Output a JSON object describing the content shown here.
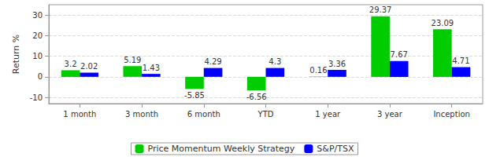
{
  "chart_data": {
    "type": "bar",
    "y_label": "Return %",
    "categories": [
      "1 month",
      "3 month",
      "6 month",
      "YTD",
      "1 year",
      "3 year",
      "Inception"
    ],
    "series": [
      {
        "name": "Price Momentum Weekly Strategy",
        "color": "#00cc00",
        "values": [
          3.2,
          5.19,
          -5.85,
          -6.56,
          0.16,
          29.37,
          23.09
        ]
      },
      {
        "name": "S&P/TSX",
        "color": "#0000ff",
        "values": [
          2.02,
          1.43,
          4.29,
          4.3,
          3.36,
          7.67,
          4.71
        ]
      }
    ],
    "ylim": [
      -13,
      35
    ],
    "yticks": [
      -10,
      0,
      10,
      20,
      30
    ],
    "grid": true,
    "legend": "bottom",
    "data_labels": true
  }
}
